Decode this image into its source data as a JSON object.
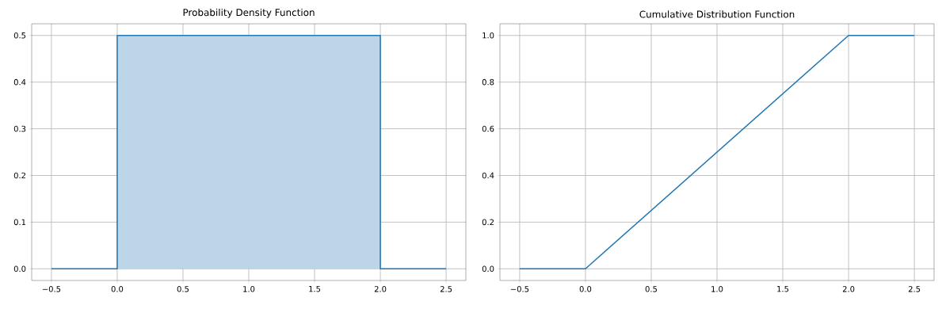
{
  "chart_data": [
    {
      "type": "area",
      "title": "Probability Density Function",
      "grid": true,
      "series": [
        {
          "color": "#1f77b4",
          "x": [
            -0.5,
            0,
            0,
            2,
            2,
            2.5
          ],
          "values": [
            0,
            0,
            0.5,
            0.5,
            0,
            0
          ]
        }
      ],
      "xlim": [
        -0.65,
        2.65
      ],
      "ylim": [
        -0.025,
        0.525
      ],
      "xticks": [
        {
          "value": -0.5,
          "label": "−0.5"
        },
        {
          "value": 0,
          "label": "0.0"
        },
        {
          "value": 0.5,
          "label": "0.5"
        },
        {
          "value": 1,
          "label": "1.0"
        },
        {
          "value": 1.5,
          "label": "1.5"
        },
        {
          "value": 2,
          "label": "2.0"
        },
        {
          "value": 2.5,
          "label": "2.5"
        }
      ],
      "yticks": [
        {
          "value": 0,
          "label": "0.0"
        },
        {
          "value": 0.1,
          "label": "0.1"
        },
        {
          "value": 0.2,
          "label": "0.2"
        },
        {
          "value": 0.3,
          "label": "0.3"
        },
        {
          "value": 0.4,
          "label": "0.4"
        },
        {
          "value": 0.5,
          "label": "0.5"
        }
      ]
    },
    {
      "type": "line",
      "title": "Cumulative Distribution Function",
      "grid": true,
      "series": [
        {
          "color": "#1f77b4",
          "x": [
            -0.5,
            0,
            2,
            2.5
          ],
          "values": [
            0,
            0,
            1,
            1
          ]
        }
      ],
      "xlim": [
        -0.65,
        2.65
      ],
      "ylim": [
        -0.05,
        1.05
      ],
      "xticks": [
        {
          "value": -0.5,
          "label": "−0.5"
        },
        {
          "value": 0,
          "label": "0.0"
        },
        {
          "value": 0.5,
          "label": "0.5"
        },
        {
          "value": 1,
          "label": "1.0"
        },
        {
          "value": 1.5,
          "label": "1.5"
        },
        {
          "value": 2,
          "label": "2.0"
        },
        {
          "value": 2.5,
          "label": "2.5"
        }
      ],
      "yticks": [
        {
          "value": 0,
          "label": "0.0"
        },
        {
          "value": 0.2,
          "label": "0.2"
        },
        {
          "value": 0.4,
          "label": "0.4"
        },
        {
          "value": 0.6,
          "label": "0.6"
        },
        {
          "value": 0.8,
          "label": "0.8"
        },
        {
          "value": 1,
          "label": "1.0"
        }
      ]
    }
  ]
}
